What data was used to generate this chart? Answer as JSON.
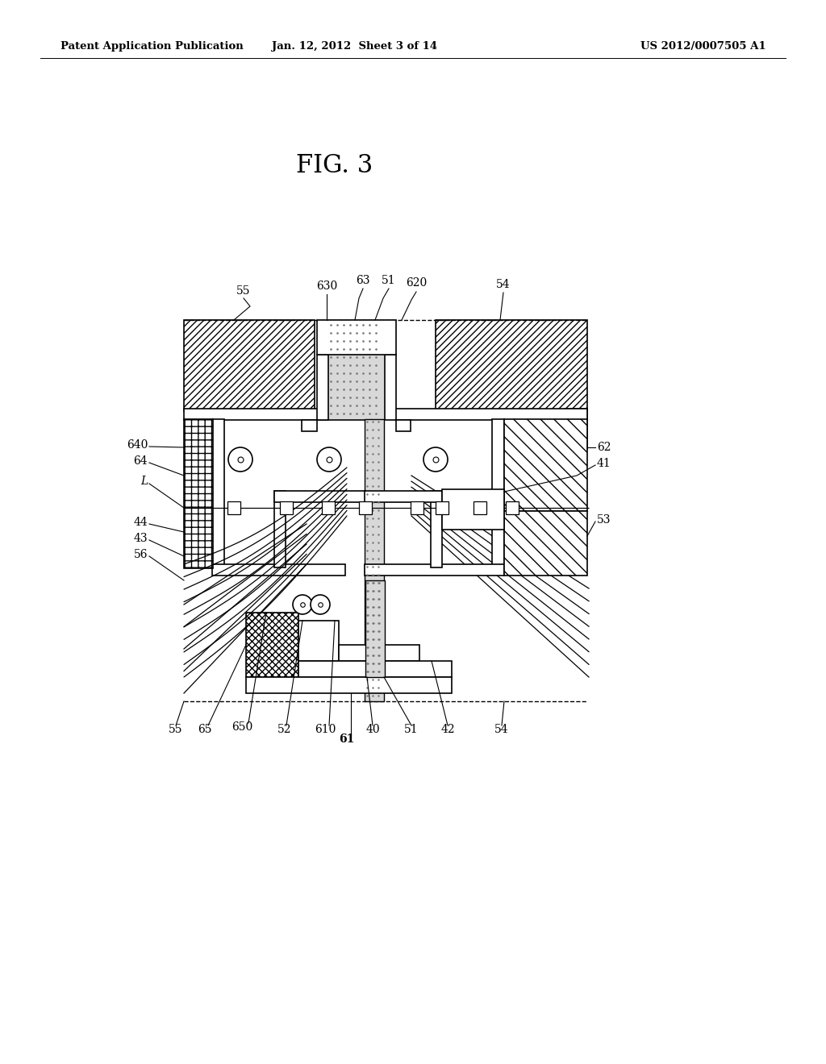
{
  "header_left": "Patent Application Publication",
  "header_center": "Jan. 12, 2012  Sheet 3 of 14",
  "header_right": "US 2012/0007505 A1",
  "fig_title": "FIG. 3",
  "bg_color": "#ffffff"
}
